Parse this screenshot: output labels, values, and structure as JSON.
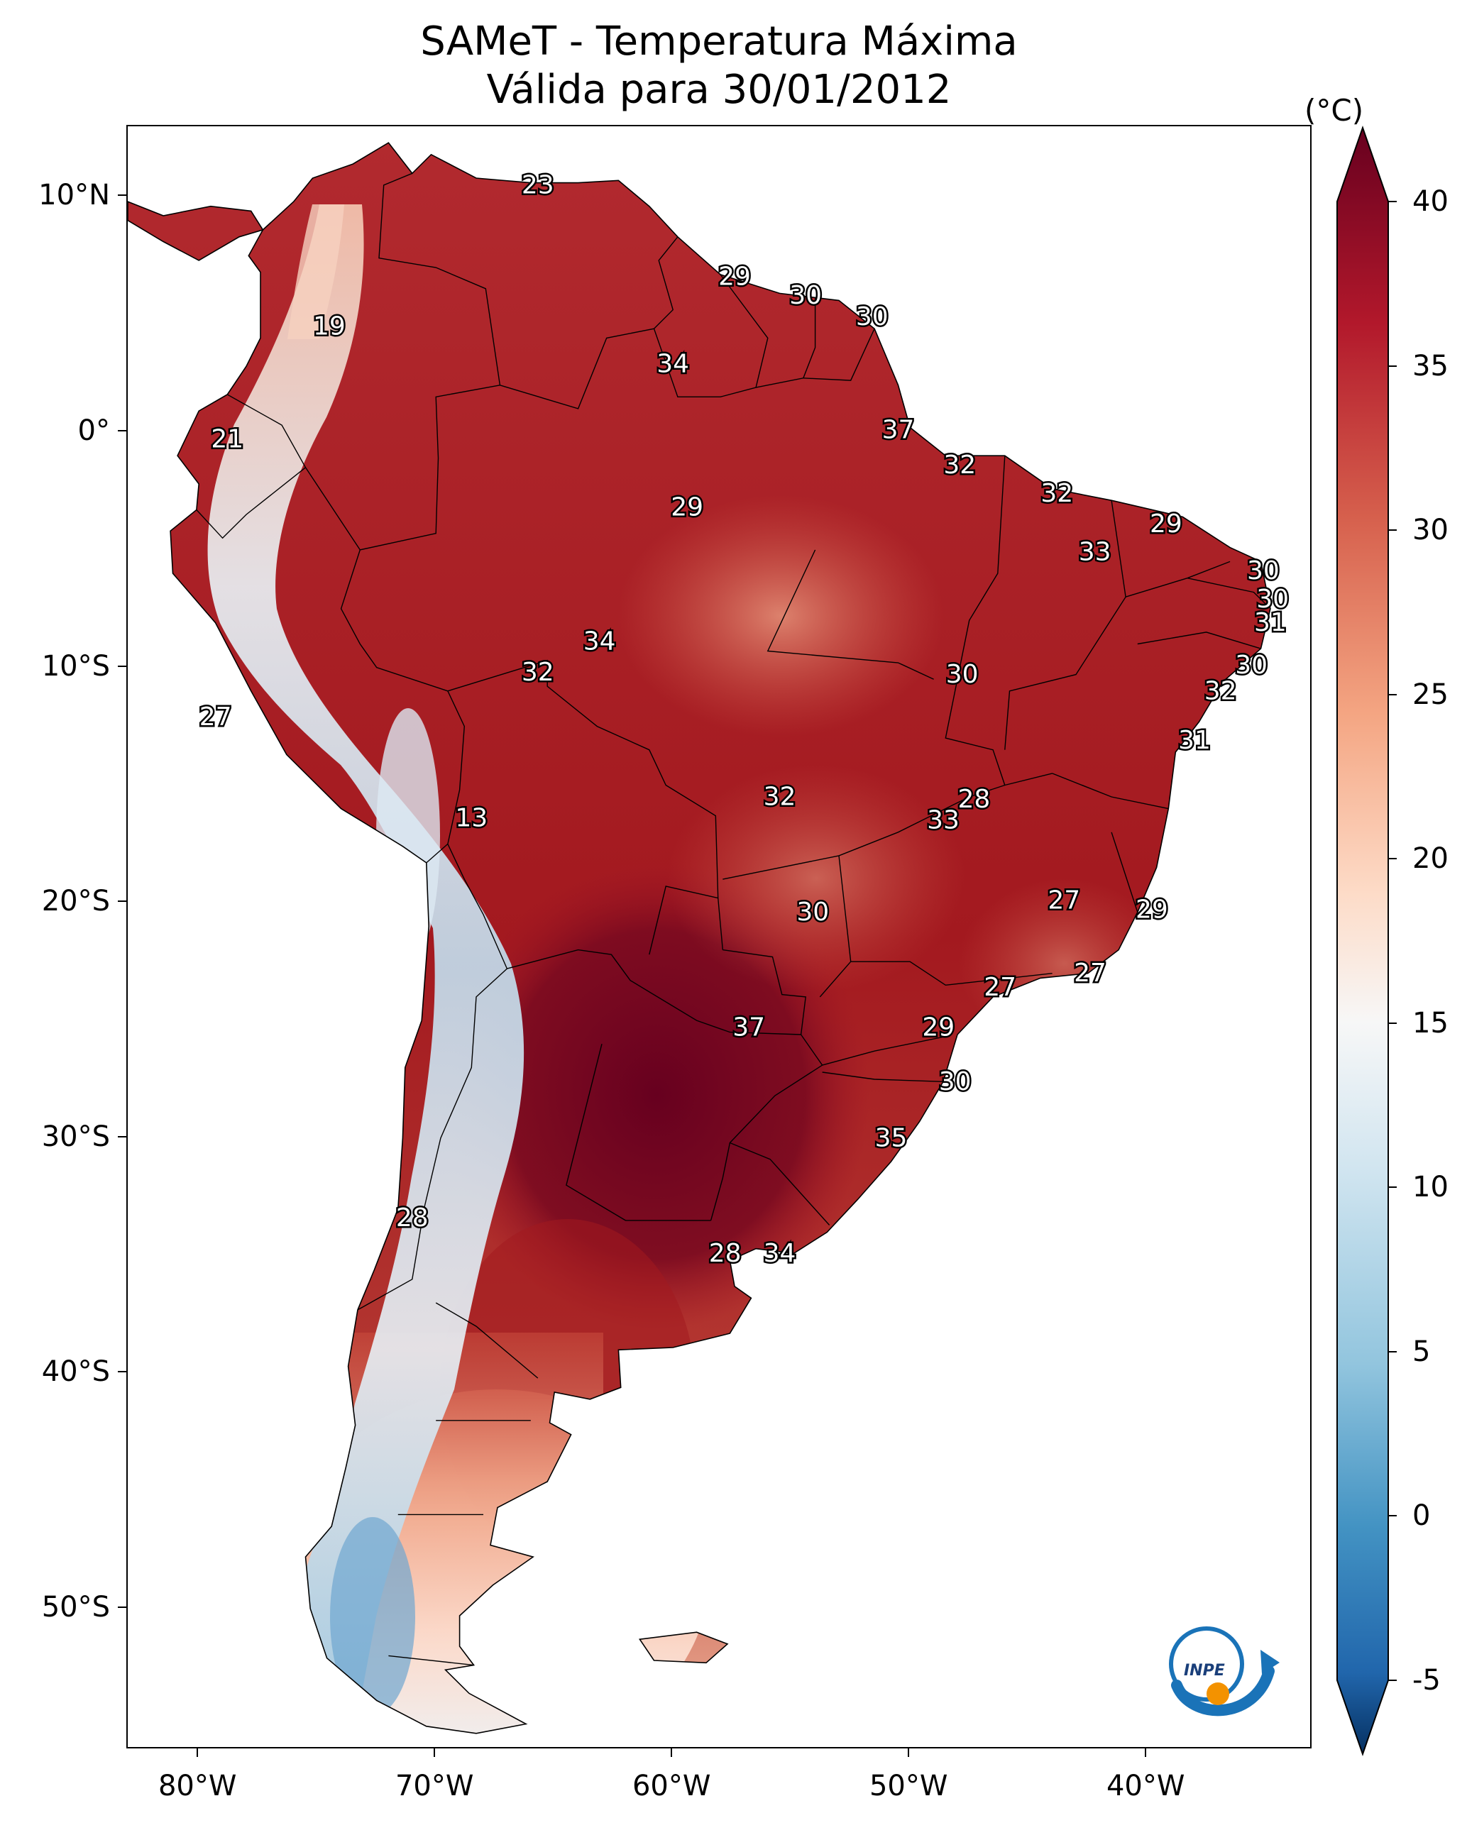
{
  "title": {
    "line1": "SAMeT - Temperatura Máxima",
    "line2": "Válida para 30/01/2012"
  },
  "colorbar": {
    "unit": "(°C)",
    "ticks": [
      "40",
      "35",
      "30",
      "25",
      "20",
      "15",
      "10",
      "5",
      "0",
      "-5"
    ],
    "range": [
      -5,
      40
    ],
    "colors": [
      "#08306b",
      "#2166ac",
      "#4393c3",
      "#92c5de",
      "#d1e5f0",
      "#f7f7f7",
      "#fddbc7",
      "#f4a582",
      "#d6604d",
      "#b2182b",
      "#67001f"
    ]
  },
  "axes": {
    "lat_ticks": [
      "10°N",
      "0°",
      "10°S",
      "20°S",
      "30°S",
      "40°S",
      "50°S"
    ],
    "lon_ticks": [
      "80°W",
      "70°W",
      "60°W",
      "50°W",
      "40°W"
    ],
    "lat_range": [
      -56,
      13
    ],
    "lon_range": [
      -83,
      -33
    ]
  },
  "labels": [
    {
      "text": "23",
      "lon": -65.7,
      "lat": 10.5
    },
    {
      "text": "19",
      "lon": -74.5,
      "lat": 4.5
    },
    {
      "text": "29",
      "lon": -57.4,
      "lat": 6.6
    },
    {
      "text": "30",
      "lon": -54.4,
      "lat": 5.8
    },
    {
      "text": "30",
      "lon": -51.6,
      "lat": 4.9
    },
    {
      "text": "34",
      "lon": -60.0,
      "lat": 2.9
    },
    {
      "text": "37",
      "lon": -50.5,
      "lat": 0.1
    },
    {
      "text": "21",
      "lon": -78.8,
      "lat": -0.3
    },
    {
      "text": "32",
      "lon": -47.9,
      "lat": -1.4
    },
    {
      "text": "32",
      "lon": -43.8,
      "lat": -2.6
    },
    {
      "text": "29",
      "lon": -59.4,
      "lat": -3.2
    },
    {
      "text": "29",
      "lon": -39.2,
      "lat": -3.9
    },
    {
      "text": "33",
      "lon": -42.2,
      "lat": -5.1
    },
    {
      "text": "30",
      "lon": -35.1,
      "lat": -5.9
    },
    {
      "text": "30",
      "lon": -34.7,
      "lat": -7.1
    },
    {
      "text": "31",
      "lon": -34.8,
      "lat": -8.1
    },
    {
      "text": "34",
      "lon": -63.1,
      "lat": -8.9
    },
    {
      "text": "32",
      "lon": -65.7,
      "lat": -10.2
    },
    {
      "text": "30",
      "lon": -47.8,
      "lat": -10.3
    },
    {
      "text": "30",
      "lon": -35.6,
      "lat": -9.9
    },
    {
      "text": "32",
      "lon": -36.9,
      "lat": -11.0
    },
    {
      "text": "27",
      "lon": -79.3,
      "lat": -12.1
    },
    {
      "text": "31",
      "lon": -38.0,
      "lat": -13.1
    },
    {
      "text": "32",
      "lon": -55.5,
      "lat": -15.5
    },
    {
      "text": "28",
      "lon": -47.3,
      "lat": -15.6
    },
    {
      "text": "33",
      "lon": -48.6,
      "lat": -16.5
    },
    {
      "text": "13",
      "lon": -68.5,
      "lat": -16.4
    },
    {
      "text": "27",
      "lon": -43.5,
      "lat": -19.9
    },
    {
      "text": "30",
      "lon": -54.1,
      "lat": -20.4
    },
    {
      "text": "29",
      "lon": -39.8,
      "lat": -20.3
    },
    {
      "text": "27",
      "lon": -42.4,
      "lat": -23.0
    },
    {
      "text": "27",
      "lon": -46.2,
      "lat": -23.6
    },
    {
      "text": "37",
      "lon": -56.8,
      "lat": -25.3
    },
    {
      "text": "29",
      "lon": -48.8,
      "lat": -25.3
    },
    {
      "text": "30",
      "lon": -48.1,
      "lat": -27.6
    },
    {
      "text": "35",
      "lon": -50.8,
      "lat": -30.0
    },
    {
      "text": "28",
      "lon": -71.0,
      "lat": -33.4
    },
    {
      "text": "28",
      "lon": -57.8,
      "lat": -34.9
    },
    {
      "text": "34",
      "lon": -55.5,
      "lat": -34.9
    }
  ]
}
